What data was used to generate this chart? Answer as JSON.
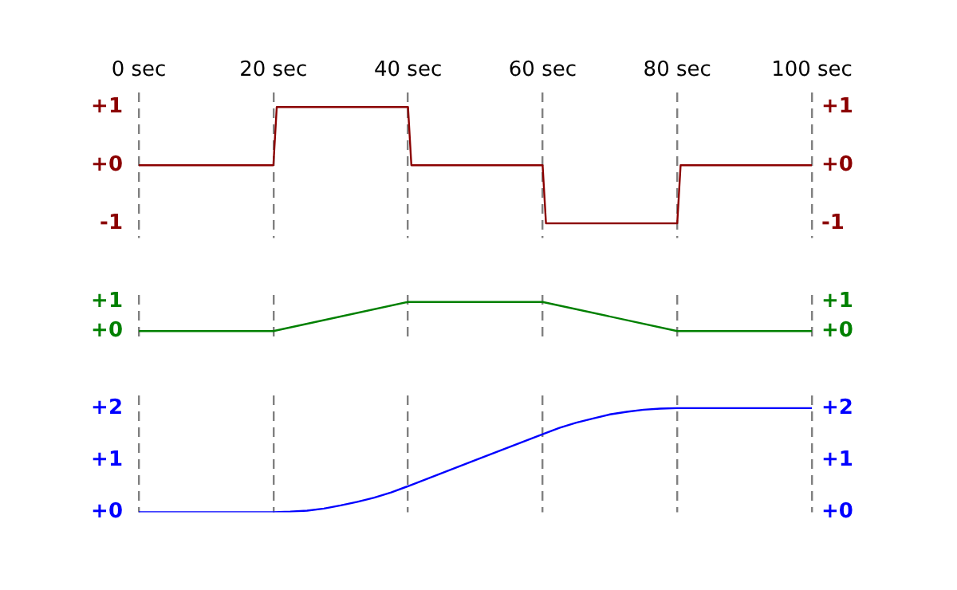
{
  "chart_data": [
    {
      "type": "line",
      "x": [
        0,
        20,
        20.5,
        40,
        40.5,
        60,
        60.5,
        80,
        80.5,
        100
      ],
      "series": [
        {
          "color": "#8b0000",
          "values": [
            0,
            0,
            1,
            1,
            0,
            0,
            -1,
            -1,
            0,
            0
          ]
        }
      ],
      "xlim": [
        0,
        100
      ],
      "xticks": [
        {
          "value": 0,
          "label": "0 sec"
        },
        {
          "value": 20,
          "label": "20 sec"
        },
        {
          "value": 40,
          "label": "40 sec"
        },
        {
          "value": 60,
          "label": "60 sec"
        },
        {
          "value": 80,
          "label": "80 sec"
        },
        {
          "value": 100,
          "label": "100 sec"
        }
      ],
      "ylim": [
        -1.25,
        1.25
      ],
      "yticks": [
        -1,
        {
          "value": 0,
          "label": "+0"
        },
        {
          "value": 1,
          "label": "+1"
        }
      ],
      "y2lim": [
        -1.25,
        1.25
      ],
      "y2ticks": [
        -1,
        {
          "value": 0,
          "label": "+0"
        },
        {
          "value": 1,
          "label": "+1"
        }
      ],
      "grid": "x",
      "marker": "none"
    },
    {
      "type": "line",
      "x": [
        0,
        20,
        40,
        60,
        80,
        100
      ],
      "series": [
        {
          "color": "#008000",
          "values": [
            0,
            0,
            1,
            1,
            0,
            0
          ]
        }
      ],
      "xlim": [
        0,
        100
      ],
      "xticks": [
        0,
        20,
        40,
        60,
        80,
        100
      ],
      "ylim": [
        -0.25,
        1.25
      ],
      "yticks": [
        {
          "value": 0,
          "label": "+0"
        },
        {
          "value": 1,
          "label": "+1"
        }
      ],
      "y2lim": [
        -0.25,
        1.25
      ],
      "y2ticks": [
        {
          "value": 0,
          "label": "+0"
        },
        {
          "value": 1,
          "label": "+1"
        }
      ],
      "grid": "x",
      "marker": "none",
      "tick_labels": "y"
    },
    {
      "type": "line",
      "x": [
        0,
        20,
        22.5,
        25,
        27.5,
        30,
        32.5,
        35,
        37.5,
        40,
        50,
        60,
        62.5,
        65,
        67.5,
        70,
        72.5,
        75,
        77.5,
        80,
        100
      ],
      "series": [
        {
          "color": "#0000ff",
          "values": [
            0,
            0,
            0.01,
            0.03,
            0.07,
            0.13,
            0.2,
            0.28,
            0.38,
            0.5,
            1,
            1.5,
            1.62,
            1.72,
            1.8,
            1.88,
            1.93,
            1.97,
            1.99,
            2,
            2
          ]
        }
      ],
      "xlim": [
        0,
        100
      ],
      "xticks": [
        0,
        20,
        40,
        60,
        80,
        100
      ],
      "ylim": [
        0,
        2.25
      ],
      "yticks": [
        {
          "value": 0,
          "label": "+0"
        },
        {
          "value": 1,
          "label": "+1"
        },
        {
          "value": 2,
          "label": "+2"
        }
      ],
      "y2lim": [
        0,
        2.25
      ],
      "y2ticks": [
        {
          "value": 0,
          "label": "+0"
        },
        {
          "value": 1,
          "label": "+1"
        },
        {
          "value": 2,
          "label": "+2"
        }
      ],
      "grid": "x",
      "marker": "none",
      "tick_labels": "y"
    }
  ]
}
